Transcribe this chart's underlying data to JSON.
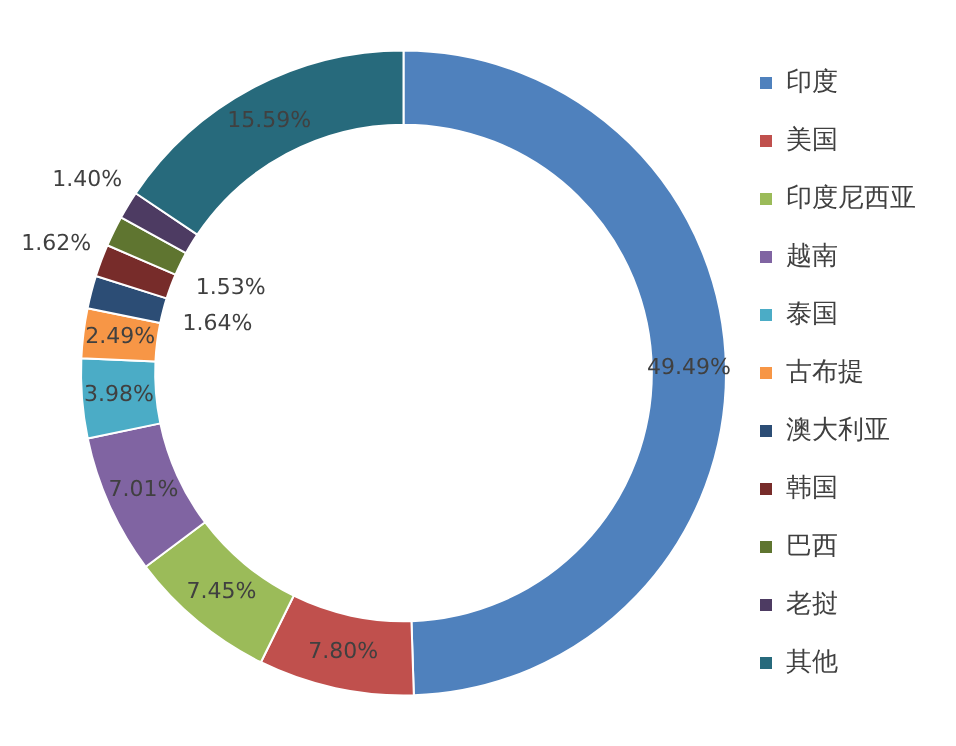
{
  "chart_data": {
    "type": "donut",
    "categories": [
      "印度",
      "美国",
      "印度尼西亚",
      "越南",
      "泰国",
      "古布提",
      "澳大利亚",
      "韩国",
      "巴西",
      "老挝",
      "其他"
    ],
    "values": [
      49.49,
      7.8,
      7.45,
      7.01,
      3.98,
      2.49,
      1.64,
      1.62,
      1.53,
      1.4,
      15.59
    ],
    "colors": [
      "#4f81bd",
      "#c0504d",
      "#9bbb59",
      "#8064a2",
      "#4bacc6",
      "#f79646",
      "#2c4d75",
      "#772c2a",
      "#5f7530",
      "#4d3b62",
      "#276a7c"
    ],
    "value_labels": [
      "49.49%",
      "7.80%",
      "7.45%",
      "7.01%",
      "3.98%",
      "2.49%",
      "1.64%",
      "1.62%",
      "1.53%",
      "1.40%",
      "15.59%"
    ],
    "legend": "right"
  }
}
